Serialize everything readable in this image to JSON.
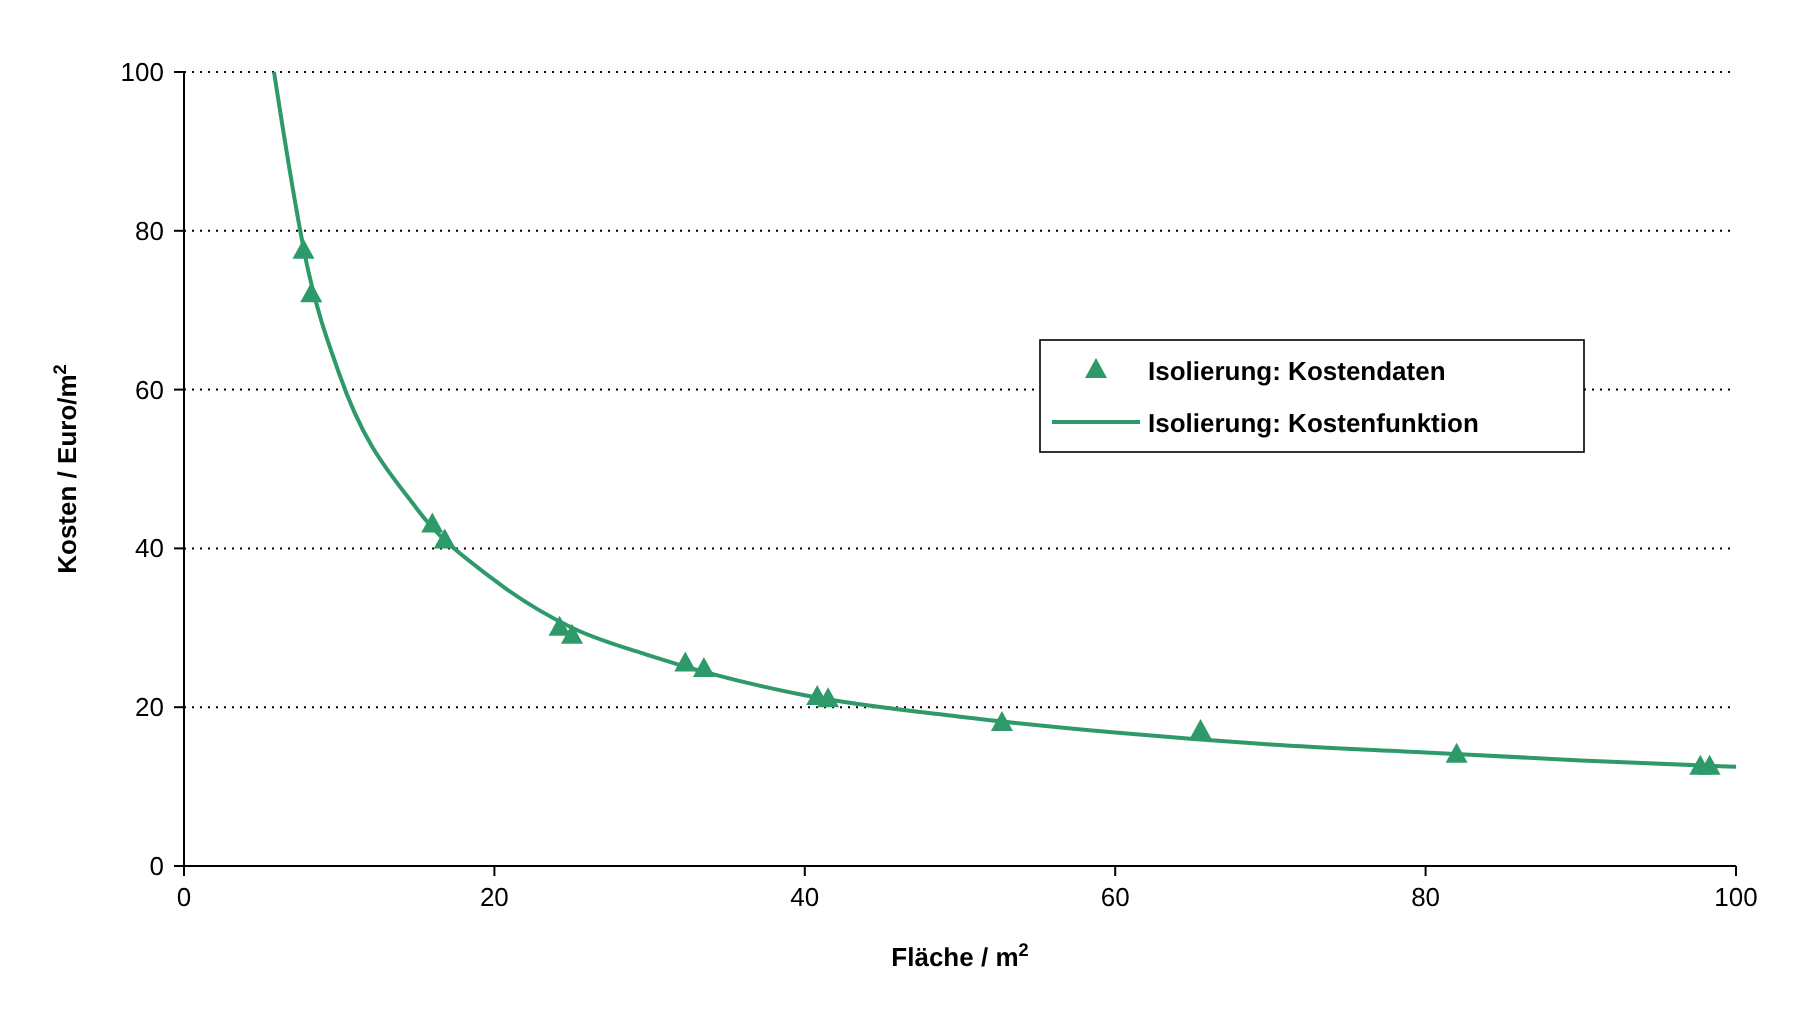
{
  "chart_data": {
    "type": "scatter",
    "xlabel": "Fläche / m$^{2}$",
    "ylabel": "Kosten / Euro/m$^{2}$",
    "xlim": [
      0,
      100
    ],
    "ylim": [
      0,
      100
    ],
    "xticks": [
      0,
      20,
      40,
      60,
      80,
      100
    ],
    "yticks": [
      0,
      20,
      40,
      60,
      80,
      100
    ],
    "grid": "y",
    "legend": "right",
    "series": [
      {
        "name": "Isolierung: Kostendaten",
        "marker": "triangle",
        "color": "#2e9a6a",
        "x": [
          7.7,
          8.2,
          16.0,
          16.8,
          24.2,
          25.0,
          32.3,
          33.5,
          40.8,
          41.5,
          52.7,
          65.5,
          82,
          97.7,
          98.3
        ],
        "values": [
          77.5,
          72,
          43,
          41,
          30,
          29,
          25.5,
          24.8,
          21.3,
          21,
          18,
          17,
          14,
          12.5,
          12.5
        ]
      },
      {
        "name": "Isolierung: Kostenfunktion",
        "type": "line",
        "marker": "none",
        "color": "#2e9a6a",
        "x": [
          5.8,
          8,
          10,
          15,
          20,
          25,
          30,
          40,
          50,
          60,
          70,
          80,
          90,
          100
        ],
        "values": [
          100,
          75,
          62,
          45,
          36,
          30,
          26.5,
          21.5,
          18.8,
          16.8,
          15.3,
          14.3,
          13.3,
          12.5
        ]
      }
    ]
  }
}
